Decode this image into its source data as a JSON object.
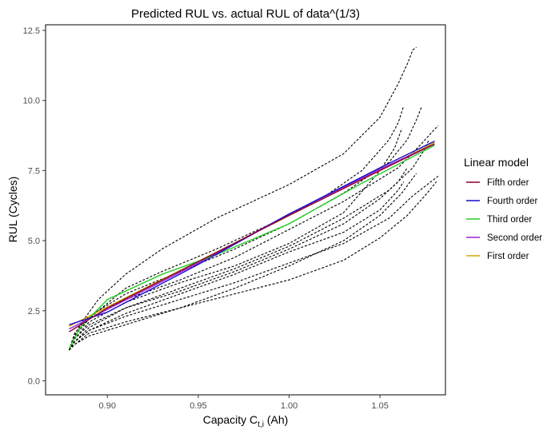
{
  "chart_data": {
    "type": "line",
    "title": "Predicted RUL vs. actual RUL of data^(1/3)",
    "xlabel": "Capacity C",
    "xlabel_subscript": "t,i",
    "xlabel_unit": " (Ah)",
    "ylabel": "RUL (Cycles)",
    "xlim": [
      0.866,
      1.086
    ],
    "ylim": [
      -0.5,
      12.7
    ],
    "xticks": [
      0.9,
      0.95,
      1.0,
      1.05
    ],
    "xtick_labels": [
      "0.90",
      "0.95",
      "1.00",
      "1.05"
    ],
    "yticks": [
      0.0,
      2.5,
      5.0,
      7.5,
      10.0,
      12.5
    ],
    "ytick_labels": [
      "0.0",
      "2.5",
      "5.0",
      "7.5",
      "10.0",
      "12.5"
    ],
    "grid": false,
    "legend": {
      "title": "Linear model",
      "placement": "right",
      "entries": [
        {
          "label": "Fifth order",
          "color": "#8B0037"
        },
        {
          "label": "Fourth order",
          "color": "#1A0ACC"
        },
        {
          "label": "Third order",
          "color": "#22CC22"
        },
        {
          "label": "Second order",
          "color": "#9B22D4"
        },
        {
          "label": "First order",
          "color": "#D4A500"
        }
      ]
    },
    "actual_curves_style": {
      "color": "#000000",
      "dashed": true
    },
    "actual_curves": [
      {
        "x": [
          0.879,
          0.881,
          0.885,
          0.895,
          0.91,
          0.93,
          0.96,
          1.0,
          1.03,
          1.05,
          1.06,
          1.065,
          1.068,
          1.07
        ],
        "y": [
          1.1,
          1.5,
          2.0,
          2.9,
          3.8,
          4.7,
          5.8,
          7.0,
          8.1,
          9.4,
          10.6,
          11.3,
          11.8,
          11.9
        ]
      },
      {
        "x": [
          0.879,
          0.881,
          0.885,
          0.895,
          0.91,
          0.93,
          0.96,
          1.0,
          1.02,
          1.04,
          1.055,
          1.06,
          1.063
        ],
        "y": [
          1.1,
          1.4,
          1.9,
          2.5,
          3.3,
          3.9,
          4.7,
          5.9,
          6.6,
          7.5,
          8.6,
          9.2,
          9.8
        ]
      },
      {
        "x": [
          0.879,
          0.882,
          0.89,
          0.91,
          0.94,
          0.97,
          1.0,
          1.03,
          1.055,
          1.065,
          1.07,
          1.073
        ],
        "y": [
          1.1,
          1.7,
          2.3,
          3.1,
          3.9,
          4.7,
          5.6,
          6.7,
          7.8,
          8.6,
          9.3,
          9.8
        ]
      },
      {
        "x": [
          0.879,
          0.882,
          0.89,
          0.91,
          0.94,
          0.97,
          1.0,
          1.03,
          1.06,
          1.072,
          1.079,
          1.082
        ],
        "y": [
          1.1,
          1.6,
          2.2,
          2.9,
          3.6,
          4.4,
          5.4,
          6.4,
          7.6,
          8.4,
          8.9,
          9.1
        ]
      },
      {
        "x": [
          0.879,
          0.882,
          0.89,
          0.91,
          0.94,
          0.97,
          1.0,
          1.03,
          1.05,
          1.058,
          1.062
        ],
        "y": [
          1.1,
          1.5,
          2.1,
          2.8,
          3.5,
          4.1,
          4.9,
          6.0,
          7.5,
          8.3,
          9.0
        ]
      },
      {
        "x": [
          0.879,
          0.882,
          0.89,
          0.91,
          0.94,
          0.97,
          1.0,
          1.03,
          1.055,
          1.068,
          1.074,
          1.077
        ],
        "y": [
          1.1,
          1.5,
          2.0,
          2.6,
          3.3,
          4.0,
          4.8,
          5.8,
          6.8,
          7.6,
          8.2,
          8.6
        ]
      },
      {
        "x": [
          0.879,
          0.882,
          0.89,
          0.91,
          0.94,
          0.97,
          1.0,
          1.03,
          1.05,
          1.06,
          1.065
        ],
        "y": [
          1.1,
          1.4,
          1.9,
          2.6,
          3.2,
          3.9,
          4.7,
          5.6,
          6.5,
          7.1,
          7.6
        ]
      },
      {
        "x": [
          0.879,
          0.882,
          0.89,
          0.91,
          0.94,
          0.97,
          1.0,
          1.03,
          1.05,
          1.06,
          1.063
        ],
        "y": [
          1.1,
          1.4,
          1.8,
          2.4,
          3.1,
          3.8,
          4.6,
          5.3,
          6.1,
          6.8,
          7.1
        ]
      },
      {
        "x": [
          0.879,
          0.882,
          0.89,
          0.91,
          0.94,
          0.97,
          1.0,
          1.03,
          1.055,
          1.068,
          1.078,
          1.082
        ],
        "y": [
          1.1,
          1.4,
          1.8,
          2.3,
          2.9,
          3.5,
          4.2,
          4.9,
          5.8,
          6.6,
          7.1,
          7.3
        ]
      },
      {
        "x": [
          0.879,
          0.882,
          0.89,
          0.91,
          0.94,
          0.97,
          1.0,
          1.03,
          1.05,
          1.065,
          1.076,
          1.081
        ],
        "y": [
          1.1,
          1.3,
          1.7,
          2.1,
          2.6,
          3.1,
          3.6,
          4.3,
          5.1,
          5.9,
          6.7,
          7.1
        ]
      },
      {
        "x": [
          0.879,
          0.882,
          0.89,
          0.91,
          0.94,
          0.97,
          1.0,
          1.03,
          1.05,
          1.062,
          1.07
        ],
        "y": [
          1.1,
          1.3,
          1.6,
          2.0,
          2.6,
          3.3,
          4.1,
          5.0,
          5.9,
          6.7,
          7.4
        ]
      }
    ],
    "series": [
      {
        "name": "First order",
        "color": "#D4A500",
        "x": [
          0.879,
          1.08
        ],
        "y": [
          1.95,
          8.5
        ]
      },
      {
        "name": "Second order",
        "color": "#9B22D4",
        "x": [
          0.879,
          0.9,
          0.95,
          1.0,
          1.05,
          1.08
        ],
        "y": [
          1.85,
          2.55,
          4.2,
          5.95,
          7.55,
          8.45
        ]
      },
      {
        "name": "Third order",
        "color": "#22CC22",
        "x": [
          0.879,
          0.885,
          0.9,
          0.93,
          0.96,
          1.0,
          1.04,
          1.08
        ],
        "y": [
          1.15,
          1.9,
          2.9,
          3.8,
          4.5,
          5.6,
          7.05,
          8.4
        ]
      },
      {
        "name": "Fourth order",
        "color": "#1A0ACC",
        "x": [
          0.879,
          0.9,
          0.95,
          1.0,
          1.05,
          1.08
        ],
        "y": [
          2.0,
          2.45,
          4.15,
          5.95,
          7.6,
          8.55
        ]
      },
      {
        "name": "Fifth order",
        "color": "#8B0037",
        "x": [
          0.879,
          0.9,
          0.95,
          1.0,
          1.05,
          1.08
        ],
        "y": [
          1.75,
          2.6,
          4.25,
          5.9,
          7.5,
          8.45
        ]
      }
    ]
  }
}
